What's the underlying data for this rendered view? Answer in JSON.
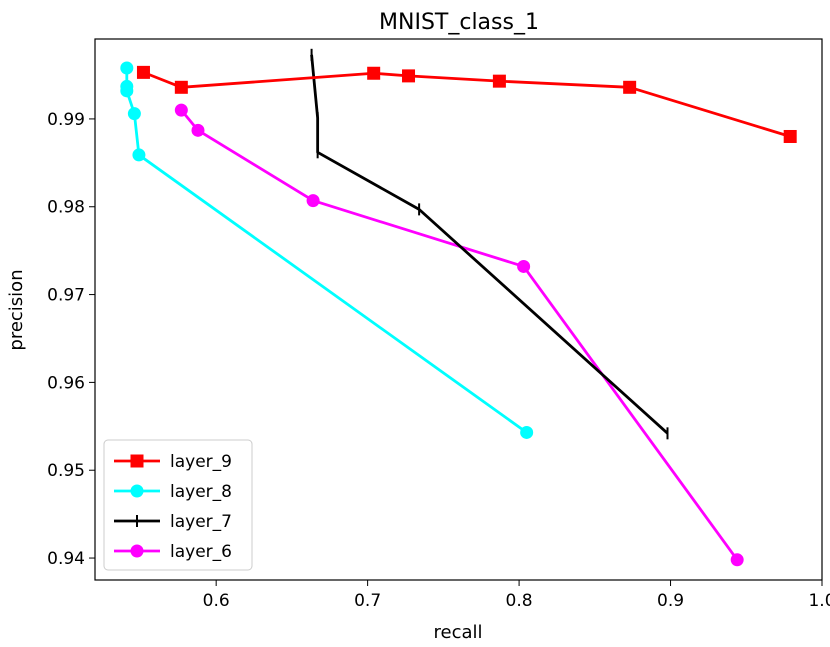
{
  "chart_data": {
    "type": "line",
    "title": "MNIST_class_1",
    "xlabel": "recall",
    "ylabel": "precision",
    "xlim": [
      0.52,
      1.0
    ],
    "ylim": [
      0.9375,
      0.9991
    ],
    "x_ticks": [
      0.6,
      0.7,
      0.8,
      0.9,
      1.0
    ],
    "x_tick_labels": [
      "0.6",
      "0.7",
      "0.8",
      "0.9",
      "1.0"
    ],
    "y_ticks": [
      0.94,
      0.95,
      0.96,
      0.97,
      0.98,
      0.99
    ],
    "y_tick_labels": [
      "0.94",
      "0.95",
      "0.96",
      "0.97",
      "0.98",
      "0.99"
    ],
    "grid": false,
    "legend_position": "bottom-left",
    "series": [
      {
        "name": "layer_9",
        "color": "#ff0000",
        "marker": "square",
        "points": [
          [
            0.552,
            0.9953
          ],
          [
            0.577,
            0.9936
          ],
          [
            0.704,
            0.9952
          ],
          [
            0.727,
            0.9949
          ],
          [
            0.787,
            0.9943
          ],
          [
            0.873,
            0.9936
          ],
          [
            0.979,
            0.988
          ]
        ]
      },
      {
        "name": "layer_8",
        "color": "#00ffff",
        "marker": "circle",
        "points": [
          [
            0.541,
            0.9958
          ],
          [
            0.541,
            0.9937
          ],
          [
            0.541,
            0.9932
          ],
          [
            0.546,
            0.9906
          ],
          [
            0.549,
            0.9859
          ],
          [
            0.805,
            0.9543
          ]
        ]
      },
      {
        "name": "layer_7",
        "color": "#000000",
        "marker": "vline",
        "points": [
          [
            0.663,
            0.9973
          ],
          [
            0.667,
            0.9901
          ],
          [
            0.667,
            0.9862
          ],
          [
            0.734,
            0.9797
          ],
          [
            0.898,
            0.9542
          ]
        ]
      },
      {
        "name": "layer_6",
        "color": "#ff00ff",
        "marker": "circle",
        "points": [
          [
            0.577,
            0.991
          ],
          [
            0.588,
            0.9887
          ],
          [
            0.664,
            0.9807
          ],
          [
            0.803,
            0.9732
          ],
          [
            0.944,
            0.9398
          ]
        ]
      }
    ]
  }
}
